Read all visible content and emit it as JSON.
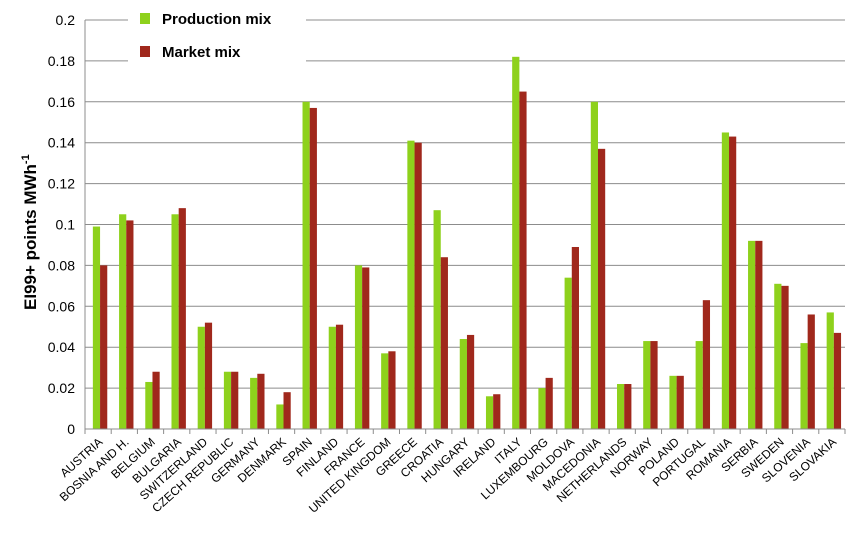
{
  "chart_data": {
    "type": "bar",
    "ylabel": "EI99+ points MWh",
    "ylabel_superscript": "-1",
    "ylim": [
      0,
      0.2
    ],
    "yticks": [
      "0",
      "0.02",
      "0.04",
      "0.06",
      "0.08",
      "0.1",
      "0.12",
      "0.14",
      "0.16",
      "0.18",
      "0.2"
    ],
    "grid": "horizontal",
    "legend_position": "top-left",
    "categories": [
      "AUSTRIA",
      "BOSNIA AND H.",
      "BELGIUM",
      "BULGARIA",
      "SWITZERLAND",
      "CZECH REPUBLIC",
      "GERMANY",
      "DENMARK",
      "SPAIN",
      "FINLAND",
      "FRANCE",
      "UNITED KINGDOM",
      "GREECE",
      "CROATIA",
      "HUNGARY",
      "IRELAND",
      "ITALY",
      "LUXEMBOURG",
      "MOLDOVA",
      "MACEDONIA",
      "NETHERLANDS",
      "NORWAY",
      "POLAND",
      "PORTUGAL",
      "ROMANIA",
      "SERBIA",
      "SWEDEN",
      "SLOVENIA",
      "SLOVAKIA"
    ],
    "series": [
      {
        "name": "Production mix",
        "color": "#8ed11c",
        "values": [
          0.099,
          0.105,
          0.023,
          0.105,
          0.05,
          0.028,
          0.025,
          0.012,
          0.16,
          0.05,
          0.08,
          0.037,
          0.141,
          0.107,
          0.044,
          0.016,
          0.182,
          0.02,
          0.074,
          0.16,
          0.022,
          0.043,
          0.026,
          0.043,
          0.145,
          0.092,
          0.071,
          0.042,
          0.057
        ]
      },
      {
        "name": "Market mix",
        "color": "#a0281c",
        "values": [
          0.08,
          0.102,
          0.028,
          0.108,
          0.052,
          0.028,
          0.027,
          0.018,
          0.157,
          0.051,
          0.079,
          0.038,
          0.14,
          0.084,
          0.046,
          0.017,
          0.165,
          0.025,
          0.089,
          0.137,
          0.022,
          0.043,
          0.026,
          0.063,
          0.143,
          0.092,
          0.07,
          0.056,
          0.047
        ]
      }
    ]
  }
}
